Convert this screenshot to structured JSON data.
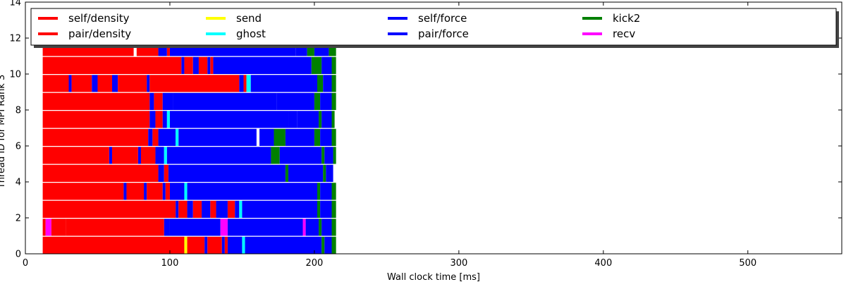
{
  "chart_data": {
    "type": "bar",
    "orientation": "horizontal-timeline",
    "title": "",
    "xlabel": "Wall clock time [ms]",
    "ylabel": "Thread ID for MPI Rank 3",
    "xlim": [
      0,
      565
    ],
    "ylim": [
      0,
      14
    ],
    "x_ticks": [
      0,
      100,
      200,
      300,
      400,
      500
    ],
    "y_ticks": [
      0,
      2,
      4,
      6,
      8,
      10,
      12,
      14
    ],
    "grid": false,
    "legend_placement": "top",
    "legend": [
      {
        "label": "self/density",
        "color": "#ff0000"
      },
      {
        "label": "pair/density",
        "color": "#ff0000"
      },
      {
        "label": "send",
        "color": "#ffff00"
      },
      {
        "label": "ghost",
        "color": "#00ffff"
      },
      {
        "label": "self/force",
        "color": "#0000ff"
      },
      {
        "label": "pair/force",
        "color": "#0000ff"
      },
      {
        "label": "kick2",
        "color": "#008000"
      },
      {
        "label": "recv",
        "color": "#ff00ff"
      }
    ],
    "threads": [
      {
        "id": 0,
        "segments": [
          [
            12,
            110,
            "#ff0000"
          ],
          [
            110,
            112,
            "#ffff00"
          ],
          [
            112,
            124,
            "#ff0000"
          ],
          [
            124,
            126,
            "#0000ff"
          ],
          [
            126,
            136,
            "#ff0000"
          ],
          [
            136,
            138,
            "#0000ff"
          ],
          [
            138,
            140,
            "#ff0000"
          ],
          [
            140,
            150,
            "#0000ff"
          ],
          [
            150,
            152,
            "#00ffff"
          ],
          [
            152,
            205,
            "#0000ff"
          ],
          [
            205,
            207,
            "#008000"
          ],
          [
            207,
            212,
            "#0000ff"
          ],
          [
            212,
            215,
            "#008000"
          ]
        ]
      },
      {
        "id": 1,
        "segments": [
          [
            12,
            14,
            "#ff0000"
          ],
          [
            14,
            18,
            "#ff00ff"
          ],
          [
            18,
            28,
            "#ff0000"
          ],
          [
            28,
            96,
            "#ff0000"
          ],
          [
            96,
            100,
            "#0000ff"
          ],
          [
            100,
            135,
            "#0000ff"
          ],
          [
            135,
            140,
            "#ff00ff"
          ],
          [
            140,
            192,
            "#0000ff"
          ],
          [
            192,
            194,
            "#ff00ff"
          ],
          [
            194,
            203,
            "#0000ff"
          ],
          [
            203,
            205,
            "#008000"
          ],
          [
            205,
            212,
            "#0000ff"
          ],
          [
            212,
            215,
            "#008000"
          ]
        ]
      },
      {
        "id": 2,
        "segments": [
          [
            12,
            104,
            "#ff0000"
          ],
          [
            104,
            106,
            "#0000ff"
          ],
          [
            106,
            112,
            "#ff0000"
          ],
          [
            112,
            116,
            "#0000ff"
          ],
          [
            116,
            122,
            "#ff0000"
          ],
          [
            122,
            128,
            "#0000ff"
          ],
          [
            128,
            132,
            "#ff0000"
          ],
          [
            132,
            140,
            "#0000ff"
          ],
          [
            140,
            145,
            "#ff0000"
          ],
          [
            145,
            148,
            "#0000ff"
          ],
          [
            148,
            150,
            "#00ffff"
          ],
          [
            150,
            202,
            "#0000ff"
          ],
          [
            202,
            204,
            "#008000"
          ],
          [
            204,
            212,
            "#0000ff"
          ],
          [
            212,
            215,
            "#008000"
          ]
        ]
      },
      {
        "id": 3,
        "segments": [
          [
            12,
            68,
            "#ff0000"
          ],
          [
            68,
            70,
            "#0000ff"
          ],
          [
            70,
            82,
            "#ff0000"
          ],
          [
            82,
            84,
            "#0000ff"
          ],
          [
            84,
            95,
            "#ff0000"
          ],
          [
            95,
            97,
            "#0000ff"
          ],
          [
            97,
            100,
            "#ff0000"
          ],
          [
            100,
            110,
            "#0000ff"
          ],
          [
            110,
            112,
            "#00ffff"
          ],
          [
            112,
            202,
            "#0000ff"
          ],
          [
            202,
            204,
            "#008000"
          ],
          [
            204,
            212,
            "#0000ff"
          ],
          [
            212,
            215,
            "#008000"
          ]
        ]
      },
      {
        "id": 4,
        "segments": [
          [
            12,
            92,
            "#ff0000"
          ],
          [
            92,
            96,
            "#0000ff"
          ],
          [
            96,
            99,
            "#ff0000"
          ],
          [
            99,
            180,
            "#0000ff"
          ],
          [
            180,
            182,
            "#008000"
          ],
          [
            182,
            206,
            "#0000ff"
          ],
          [
            206,
            208,
            "#008000"
          ],
          [
            208,
            213,
            "#0000ff"
          ]
        ]
      },
      {
        "id": 5,
        "segments": [
          [
            12,
            58,
            "#ff0000"
          ],
          [
            58,
            60,
            "#0000ff"
          ],
          [
            60,
            78,
            "#ff0000"
          ],
          [
            78,
            80,
            "#0000ff"
          ],
          [
            80,
            90,
            "#ff0000"
          ],
          [
            90,
            96,
            "#0000ff"
          ],
          [
            96,
            98,
            "#00ffff"
          ],
          [
            98,
            170,
            "#0000ff"
          ],
          [
            170,
            176,
            "#008000"
          ],
          [
            176,
            205,
            "#0000ff"
          ],
          [
            205,
            207,
            "#008000"
          ],
          [
            207,
            213,
            "#0000ff"
          ],
          [
            213,
            215,
            "#008000"
          ]
        ]
      },
      {
        "id": 6,
        "segments": [
          [
            12,
            85,
            "#ff0000"
          ],
          [
            85,
            88,
            "#0000ff"
          ],
          [
            88,
            92,
            "#ff0000"
          ],
          [
            92,
            104,
            "#0000ff"
          ],
          [
            104,
            106,
            "#00ffff"
          ],
          [
            106,
            160,
            "#0000ff"
          ],
          [
            160,
            162,
            "#ffffff"
          ],
          [
            162,
            172,
            "#0000ff"
          ],
          [
            172,
            180,
            "#008000"
          ],
          [
            180,
            200,
            "#0000ff"
          ],
          [
            200,
            204,
            "#008000"
          ],
          [
            204,
            212,
            "#0000ff"
          ],
          [
            212,
            215,
            "#008000"
          ]
        ]
      },
      {
        "id": 7,
        "segments": [
          [
            12,
            86,
            "#ff0000"
          ],
          [
            86,
            90,
            "#0000ff"
          ],
          [
            90,
            95,
            "#ff0000"
          ],
          [
            95,
            98,
            "#0000ff"
          ],
          [
            98,
            100,
            "#00ffff"
          ],
          [
            100,
            182,
            "#0000ff"
          ],
          [
            182,
            188,
            "#0000ff"
          ],
          [
            188,
            203,
            "#0000ff"
          ],
          [
            203,
            205,
            "#008000"
          ],
          [
            205,
            212,
            "#0000ff"
          ],
          [
            212,
            214,
            "#008000"
          ]
        ]
      },
      {
        "id": 8,
        "segments": [
          [
            12,
            86,
            "#ff0000"
          ],
          [
            86,
            89,
            "#0000ff"
          ],
          [
            89,
            95,
            "#ff0000"
          ],
          [
            95,
            102,
            "#0000ff"
          ],
          [
            102,
            174,
            "#0000ff"
          ],
          [
            174,
            200,
            "#0000ff"
          ],
          [
            200,
            204,
            "#008000"
          ],
          [
            204,
            212,
            "#0000ff"
          ],
          [
            212,
            215,
            "#008000"
          ]
        ]
      },
      {
        "id": 9,
        "segments": [
          [
            12,
            30,
            "#ff0000"
          ],
          [
            30,
            32,
            "#0000ff"
          ],
          [
            32,
            46,
            "#ff0000"
          ],
          [
            46,
            50,
            "#0000ff"
          ],
          [
            50,
            60,
            "#ff0000"
          ],
          [
            60,
            64,
            "#0000ff"
          ],
          [
            64,
            84,
            "#ff0000"
          ],
          [
            84,
            86,
            "#0000ff"
          ],
          [
            86,
            148,
            "#ff0000"
          ],
          [
            148,
            151,
            "#0000ff"
          ],
          [
            151,
            153,
            "#ff0000"
          ],
          [
            153,
            156,
            "#00ffff"
          ],
          [
            156,
            202,
            "#0000ff"
          ],
          [
            202,
            206,
            "#008000"
          ],
          [
            206,
            212,
            "#0000ff"
          ],
          [
            212,
            215,
            "#008000"
          ]
        ]
      },
      {
        "id": 10,
        "segments": [
          [
            12,
            108,
            "#ff0000"
          ],
          [
            108,
            110,
            "#0000ff"
          ],
          [
            110,
            116,
            "#ff0000"
          ],
          [
            116,
            120,
            "#0000ff"
          ],
          [
            120,
            126,
            "#ff0000"
          ],
          [
            126,
            128,
            "#0000ff"
          ],
          [
            128,
            130,
            "#ff0000"
          ],
          [
            130,
            198,
            "#0000ff"
          ],
          [
            198,
            205,
            "#008000"
          ],
          [
            205,
            212,
            "#0000ff"
          ],
          [
            212,
            215,
            "#008000"
          ]
        ]
      },
      {
        "id": 11,
        "segments": [
          [
            12,
            75,
            "#ff0000"
          ],
          [
            75,
            77,
            "#ffffff"
          ],
          [
            77,
            92,
            "#ff0000"
          ],
          [
            92,
            98,
            "#0000ff"
          ],
          [
            98,
            100,
            "#ff0000"
          ],
          [
            100,
            187,
            "#0000ff"
          ],
          [
            187,
            195,
            "#0000ff"
          ],
          [
            195,
            200,
            "#008000"
          ],
          [
            200,
            210,
            "#0000ff"
          ],
          [
            210,
            215,
            "#008000"
          ]
        ]
      }
    ]
  }
}
